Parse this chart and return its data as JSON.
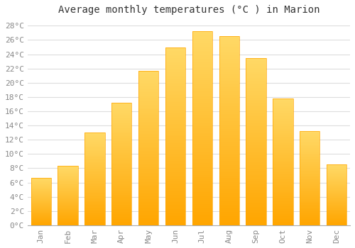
{
  "title": "Average monthly temperatures (°C ) in Marion",
  "months": [
    "Jan",
    "Feb",
    "Mar",
    "Apr",
    "May",
    "Jun",
    "Jul",
    "Aug",
    "Sep",
    "Oct",
    "Nov",
    "Dec"
  ],
  "values": [
    6.7,
    8.3,
    13.0,
    17.2,
    21.7,
    25.0,
    27.2,
    26.5,
    23.5,
    17.8,
    13.2,
    8.5
  ],
  "bar_color_top": "#FFD966",
  "bar_color_bottom": "#FFA500",
  "background_color": "#FFFFFF",
  "grid_color": "#DDDDDD",
  "title_fontsize": 10,
  "tick_fontsize": 8,
  "ylim": [
    0,
    29
  ],
  "yticks": [
    0,
    2,
    4,
    6,
    8,
    10,
    12,
    14,
    16,
    18,
    20,
    22,
    24,
    26,
    28
  ]
}
